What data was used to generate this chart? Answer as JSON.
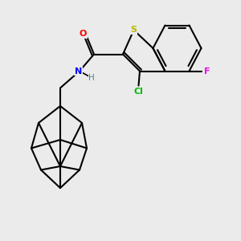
{
  "background_color": "#ebebeb",
  "bond_color": "#000000",
  "atom_colors": {
    "S": "#b8b800",
    "O": "#ff0000",
    "N": "#0000ff",
    "Cl": "#00bb00",
    "F": "#ee00ee",
    "H": "#448888"
  }
}
